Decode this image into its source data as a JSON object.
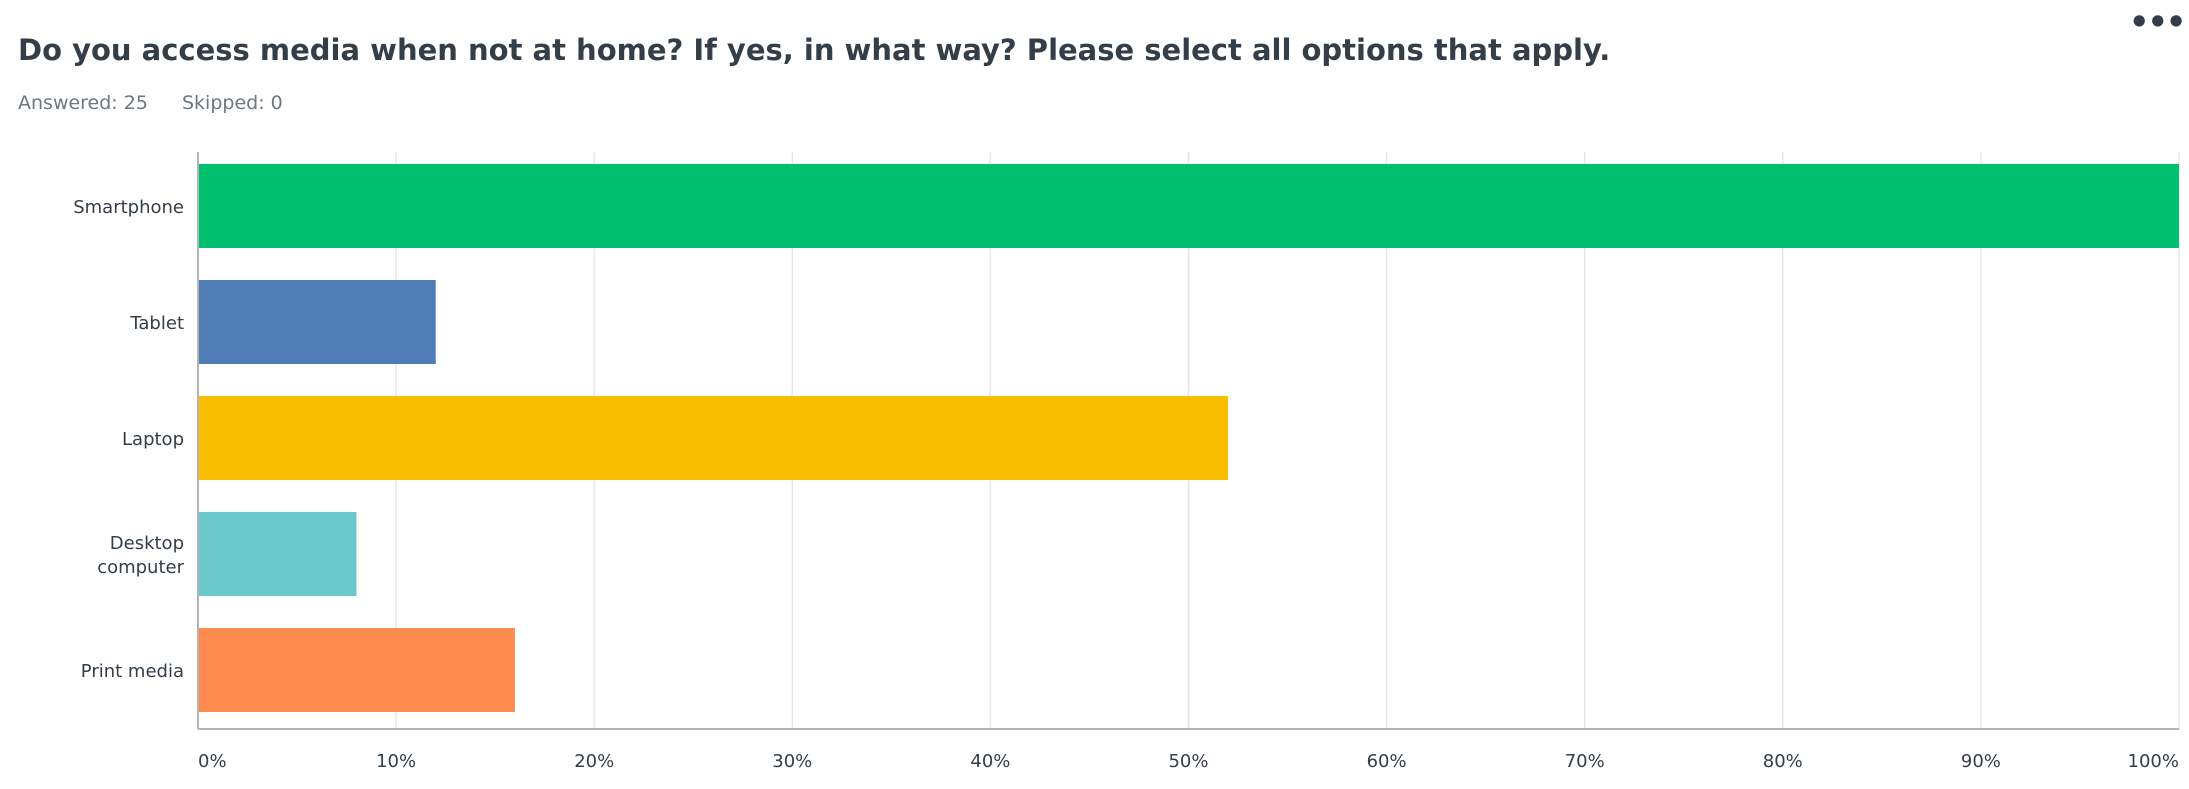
{
  "question": {
    "title": "Do you access media when not at home? If yes, in what way? Please select all options that apply.",
    "answered": "Answered: 25",
    "skipped": "Skipped: 0"
  },
  "menu": {
    "more_icon": "more-horizontal-icon",
    "more_glyph": "•••"
  },
  "chart_data": {
    "type": "bar",
    "orientation": "horizontal",
    "categories": [
      "Smartphone",
      "Tablet",
      "Laptop",
      "Desktop computer",
      "Print media"
    ],
    "category_lines": [
      [
        "Smartphone"
      ],
      [
        "Tablet"
      ],
      [
        "Laptop"
      ],
      [
        "Desktop",
        "computer"
      ],
      [
        "Print media"
      ]
    ],
    "values": [
      100,
      12,
      52,
      8,
      16
    ],
    "colors": [
      "#00bf6f",
      "#507cb6",
      "#f9be00",
      "#6bc8cd",
      "#ff8b4f"
    ],
    "xlim": [
      0,
      100
    ],
    "xticks": [
      0,
      10,
      20,
      30,
      40,
      50,
      60,
      70,
      80,
      90,
      100
    ],
    "xtick_labels": [
      "0%",
      "10%",
      "20%",
      "30%",
      "40%",
      "50%",
      "60%",
      "70%",
      "80%",
      "90%",
      "100%"
    ],
    "grid": true,
    "title": "",
    "xlabel": "",
    "ylabel": ""
  }
}
